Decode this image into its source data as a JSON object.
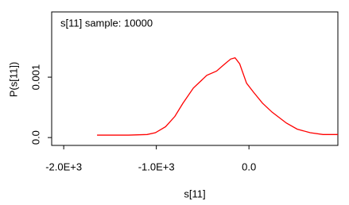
{
  "chart_data": {
    "type": "line",
    "title": "s[11] sample: 10000",
    "x_label": "s[11]",
    "y_label": "P(s[11])",
    "x": [
      -1640,
      -1300,
      -1100,
      -1010,
      -900,
      -800,
      -712,
      -600,
      -455,
      -350,
      -260,
      -197,
      -150,
      -100,
      -26,
      50,
      146,
      250,
      404,
      520,
      661,
      800,
      960
    ],
    "series": [
      {
        "name": "s[11]",
        "color": "#ff0000",
        "values": [
          4e-05,
          4e-05,
          5e-05,
          8e-05,
          0.00018,
          0.00035,
          0.00057,
          0.00082,
          0.00103,
          0.0011,
          0.00122,
          0.0013,
          0.00132,
          0.00122,
          0.0009,
          0.00075,
          0.00057,
          0.00042,
          0.00024,
          0.00014,
          8e-05,
          5e-05,
          5e-05
        ]
      }
    ],
    "xlim": [
      -2130,
      960
    ],
    "ylim": [
      -0.00013,
      0.00208
    ],
    "xticks": [
      {
        "value": -2000,
        "label": "-2.0E+3"
      },
      {
        "value": -1000,
        "label": "-1.0E+3"
      },
      {
        "value": 0,
        "label": "0.0"
      }
    ],
    "yticks": [
      {
        "value": 0,
        "label": "0.0"
      },
      0.001
    ]
  }
}
